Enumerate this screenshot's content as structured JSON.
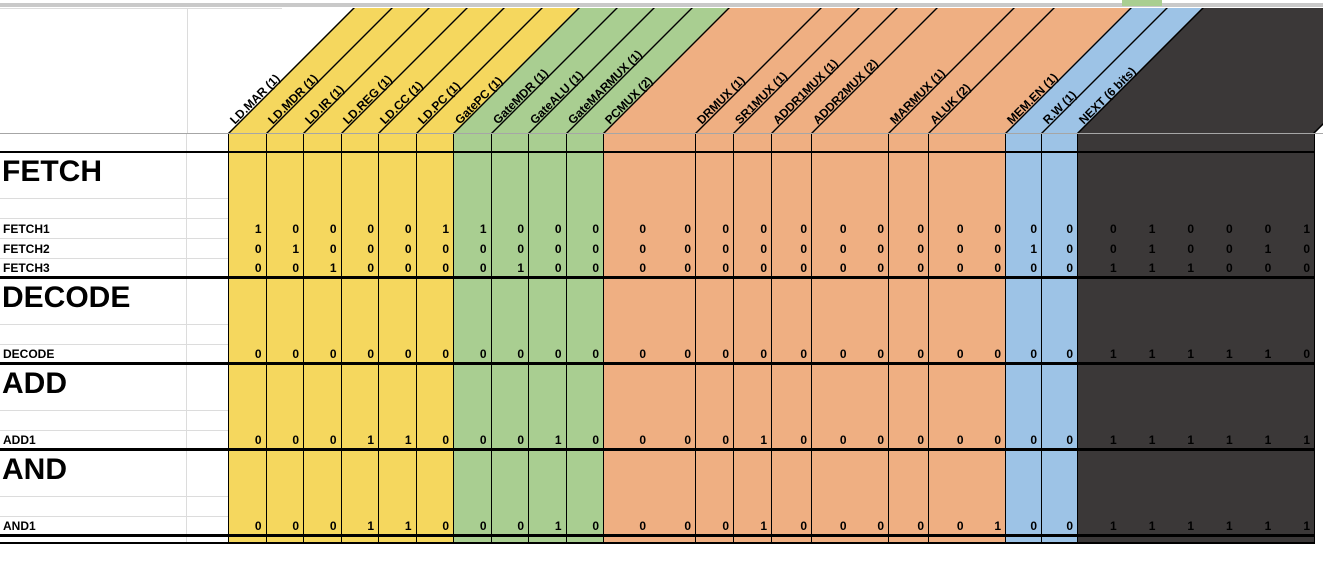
{
  "colors": {
    "yellow": "#F5D75E",
    "green": "#A9CE91",
    "orange": "#EFAF82",
    "blue": "#9DC3E6",
    "dark": "#3B3838"
  },
  "columns": [
    {
      "label": "LD.MAR (1)",
      "group": "yellow",
      "bits": 1
    },
    {
      "label": "LD.MDR (1)",
      "group": "yellow",
      "bits": 1
    },
    {
      "label": "LD.IR (1)",
      "group": "yellow",
      "bits": 1
    },
    {
      "label": "LD.REG (1)",
      "group": "yellow",
      "bits": 1
    },
    {
      "label": "LD.CC (1)",
      "group": "yellow",
      "bits": 1
    },
    {
      "label": "LD.PC (1)",
      "group": "yellow",
      "bits": 1
    },
    {
      "label": "GatePC (1)",
      "group": "green",
      "bits": 1
    },
    {
      "label": "GateMDR (1)",
      "group": "green",
      "bits": 1
    },
    {
      "label": "GateALU (1)",
      "group": "green",
      "bits": 1
    },
    {
      "label": "GateMARMUX (1)",
      "group": "green",
      "bits": 1
    },
    {
      "label": "PCMUX (2)",
      "group": "orange",
      "bits": 2
    },
    {
      "label": "DRMUX (1)",
      "group": "orange",
      "bits": 1
    },
    {
      "label": "SR1MUX (1)",
      "group": "orange",
      "bits": 1
    },
    {
      "label": "ADDR1MUX (1)",
      "group": "orange",
      "bits": 1
    },
    {
      "label": "ADDR2MUX (2)",
      "group": "orange",
      "bits": 2
    },
    {
      "label": "MARMUX (1)",
      "group": "orange",
      "bits": 1
    },
    {
      "label": "ALUK (2)",
      "group": "orange",
      "bits": 2
    },
    {
      "label": "MEM.EN (1)",
      "group": "blue",
      "bits": 1
    },
    {
      "label": "R.W (1)",
      "group": "blue",
      "bits": 1
    },
    {
      "label": "NEXT (6 bits)",
      "group": "dark",
      "bits": 6
    }
  ],
  "sections": [
    {
      "title": "FETCH",
      "rows": [
        {
          "label": "FETCH1",
          "values": [
            "1",
            "0",
            "0",
            "0",
            "0",
            "1",
            "1",
            "0",
            "0",
            "0",
            [
              "0",
              "0"
            ],
            "0",
            "0",
            "0",
            [
              "0",
              "0"
            ],
            "0",
            [
              "0",
              "0"
            ],
            "0",
            "0",
            [
              "0",
              "1",
              "0",
              "0",
              "0",
              "1"
            ]
          ]
        },
        {
          "label": "FETCH2",
          "values": [
            "0",
            "1",
            "0",
            "0",
            "0",
            "0",
            "0",
            "0",
            "0",
            "0",
            [
              "0",
              "0"
            ],
            "0",
            "0",
            "0",
            [
              "0",
              "0"
            ],
            "0",
            [
              "0",
              "0"
            ],
            "1",
            "0",
            [
              "0",
              "1",
              "0",
              "0",
              "1",
              "0"
            ]
          ]
        },
        {
          "label": "FETCH3",
          "values": [
            "0",
            "0",
            "1",
            "0",
            "0",
            "0",
            "0",
            "1",
            "0",
            "0",
            [
              "0",
              "0"
            ],
            "0",
            "0",
            "0",
            [
              "0",
              "0"
            ],
            "0",
            [
              "0",
              "0"
            ],
            "0",
            "0",
            [
              "1",
              "1",
              "1",
              "0",
              "0",
              "0"
            ]
          ]
        }
      ]
    },
    {
      "title": "DECODE",
      "rows": [
        {
          "label": "DECODE",
          "values": [
            "0",
            "0",
            "0",
            "0",
            "0",
            "0",
            "0",
            "0",
            "0",
            "0",
            [
              "0",
              "0"
            ],
            "0",
            "0",
            "0",
            [
              "0",
              "0"
            ],
            "0",
            [
              "0",
              "0"
            ],
            "0",
            "0",
            [
              "1",
              "1",
              "1",
              "1",
              "1",
              "0"
            ]
          ]
        }
      ]
    },
    {
      "title": "ADD",
      "rows": [
        {
          "label": "ADD1",
          "values": [
            "0",
            "0",
            "0",
            "1",
            "1",
            "0",
            "0",
            "0",
            "1",
            "0",
            [
              "0",
              "0"
            ],
            "0",
            "1",
            "0",
            [
              "0",
              "0"
            ],
            "0",
            [
              "0",
              "0"
            ],
            "0",
            "0",
            [
              "1",
              "1",
              "1",
              "1",
              "1",
              "1"
            ]
          ]
        }
      ]
    },
    {
      "title": "AND",
      "rows": [
        {
          "label": "AND1",
          "values": [
            "0",
            "0",
            "0",
            "1",
            "1",
            "0",
            "0",
            "0",
            "1",
            "0",
            [
              "0",
              "0"
            ],
            "0",
            "1",
            "0",
            [
              "0",
              "0"
            ],
            "0",
            [
              "0",
              "1"
            ],
            "0",
            "0",
            [
              "1",
              "1",
              "1",
              "1",
              "1",
              "1"
            ]
          ]
        }
      ]
    }
  ]
}
